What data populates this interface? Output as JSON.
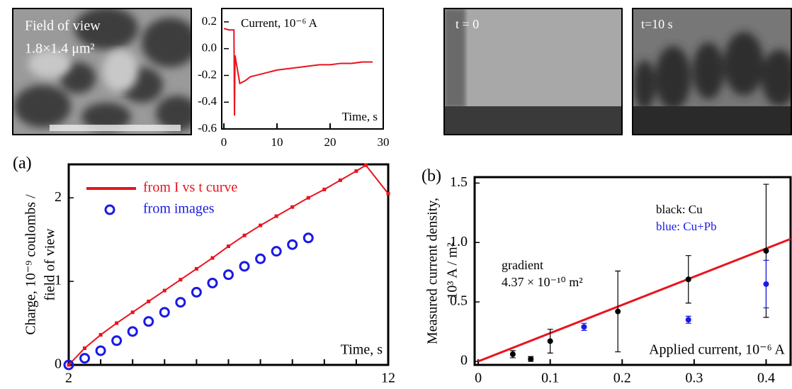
{
  "images": [
    {
      "lines": [
        "Field of view",
        "1.8×1.4 μm²"
      ]
    },
    {
      "label": "t = 0"
    },
    {
      "label": "t=10 s"
    }
  ],
  "chart_data": [
    {
      "type": "line",
      "annotation": "Current, 10⁻⁶ A",
      "x_label": "Time, s",
      "color": "#e8141e",
      "x": [
        0,
        1,
        1.9,
        2,
        2.1,
        3,
        4,
        5,
        6,
        8,
        10,
        12,
        14,
        16,
        18,
        20,
        22,
        24,
        26,
        28
      ],
      "values": [
        0.15,
        0.14,
        0.14,
        -0.5,
        -0.05,
        -0.26,
        -0.24,
        -0.21,
        -0.2,
        -0.18,
        -0.16,
        -0.15,
        -0.14,
        -0.13,
        -0.12,
        -0.12,
        -0.11,
        -0.11,
        -0.1,
        -0.1
      ],
      "xlim": [
        0,
        30
      ],
      "ylim": [
        -0.6,
        0.3
      ],
      "xticks": [
        0,
        10,
        20,
        30
      ],
      "yticks": [
        -0.6,
        -0.4,
        -0.2,
        {
          "value": 0,
          "label": "0.0"
        },
        0.2
      ]
    },
    {
      "type": "scatter",
      "label": "(a)",
      "y_label": [
        "Charge, 10⁻⁹ coulombs /",
        "field of view"
      ],
      "x_label": "Time, s",
      "xlim": [
        2,
        12
      ],
      "ylim": [
        0,
        2.4
      ],
      "xticks": [
        2,
        12
      ],
      "xminorticks": [
        3,
        4,
        5,
        6,
        7,
        8,
        9,
        10,
        11
      ],
      "yticks": [
        0,
        1,
        2
      ],
      "legend": "upper left",
      "series": [
        {
          "name": "from I vs t curve",
          "color": "#e8141e",
          "marker": "line",
          "x": [
            2,
            2.5,
            3,
            3.5,
            4,
            4.5,
            5,
            5.5,
            6,
            6.5,
            7,
            7.5,
            8,
            8.5,
            9,
            9.5,
            10,
            10.5,
            11,
            11.3,
            12
          ],
          "values": [
            0,
            0.2,
            0.36,
            0.5,
            0.63,
            0.76,
            0.89,
            1.02,
            1.15,
            1.28,
            1.42,
            1.55,
            1.67,
            1.78,
            1.89,
            2.0,
            2.1,
            2.21,
            2.32,
            2.39,
            2.05
          ]
        },
        {
          "name": "from images",
          "color": "#1a1ae6",
          "marker": "circle",
          "x": [
            2,
            2.5,
            3,
            3.5,
            4,
            4.5,
            5,
            5.5,
            6,
            6.5,
            7,
            7.5,
            8,
            8.5,
            9,
            9.5
          ],
          "values": [
            0,
            0.08,
            0.17,
            0.29,
            0.4,
            0.52,
            0.63,
            0.75,
            0.87,
            0.98,
            1.08,
            1.18,
            1.27,
            1.36,
            1.44,
            1.52
          ]
        }
      ]
    },
    {
      "type": "scatter",
      "label": "(b)",
      "y_label": [
        "Measured current density,",
        "10³ A / m²"
      ],
      "x_label": "Applied current, 10⁻⁶ A",
      "annotations": [
        "gradient",
        "4.37 × 10⁻¹⁰ m²"
      ],
      "xlim": [
        -0.005,
        0.434
      ],
      "ylim": [
        -0.03,
        1.55
      ],
      "xticks": [
        0,
        0.1,
        0.2,
        0.3,
        0.4
      ],
      "yticks": [
        0,
        0.5,
        {
          "value": 1,
          "label": "1.0"
        },
        1.5
      ],
      "legend": "upper right",
      "series": [
        {
          "name": "black: Cu",
          "color": "#000000",
          "marker": "dot",
          "x": [
            0.048,
            0.073,
            0.1,
            0.194,
            0.292,
            0.4
          ],
          "values": [
            0.06,
            0.02,
            0.17,
            0.42,
            0.69,
            0.93
          ],
          "errors": [
            0.03,
            0.02,
            0.1,
            0.34,
            0.2,
            0.56
          ]
        },
        {
          "name": "blue: Cu+Pb",
          "color": "#1a1ae6",
          "marker": "dot",
          "x": [
            0.147,
            0.292,
            0.4
          ],
          "values": [
            0.29,
            0.35,
            0.65
          ],
          "errors": [
            0.03,
            0.03,
            0.2
          ]
        }
      ],
      "fit_line": {
        "color": "#e8141e",
        "x": [
          0,
          0.434
        ],
        "values": [
          0,
          1.03
        ]
      }
    }
  ]
}
